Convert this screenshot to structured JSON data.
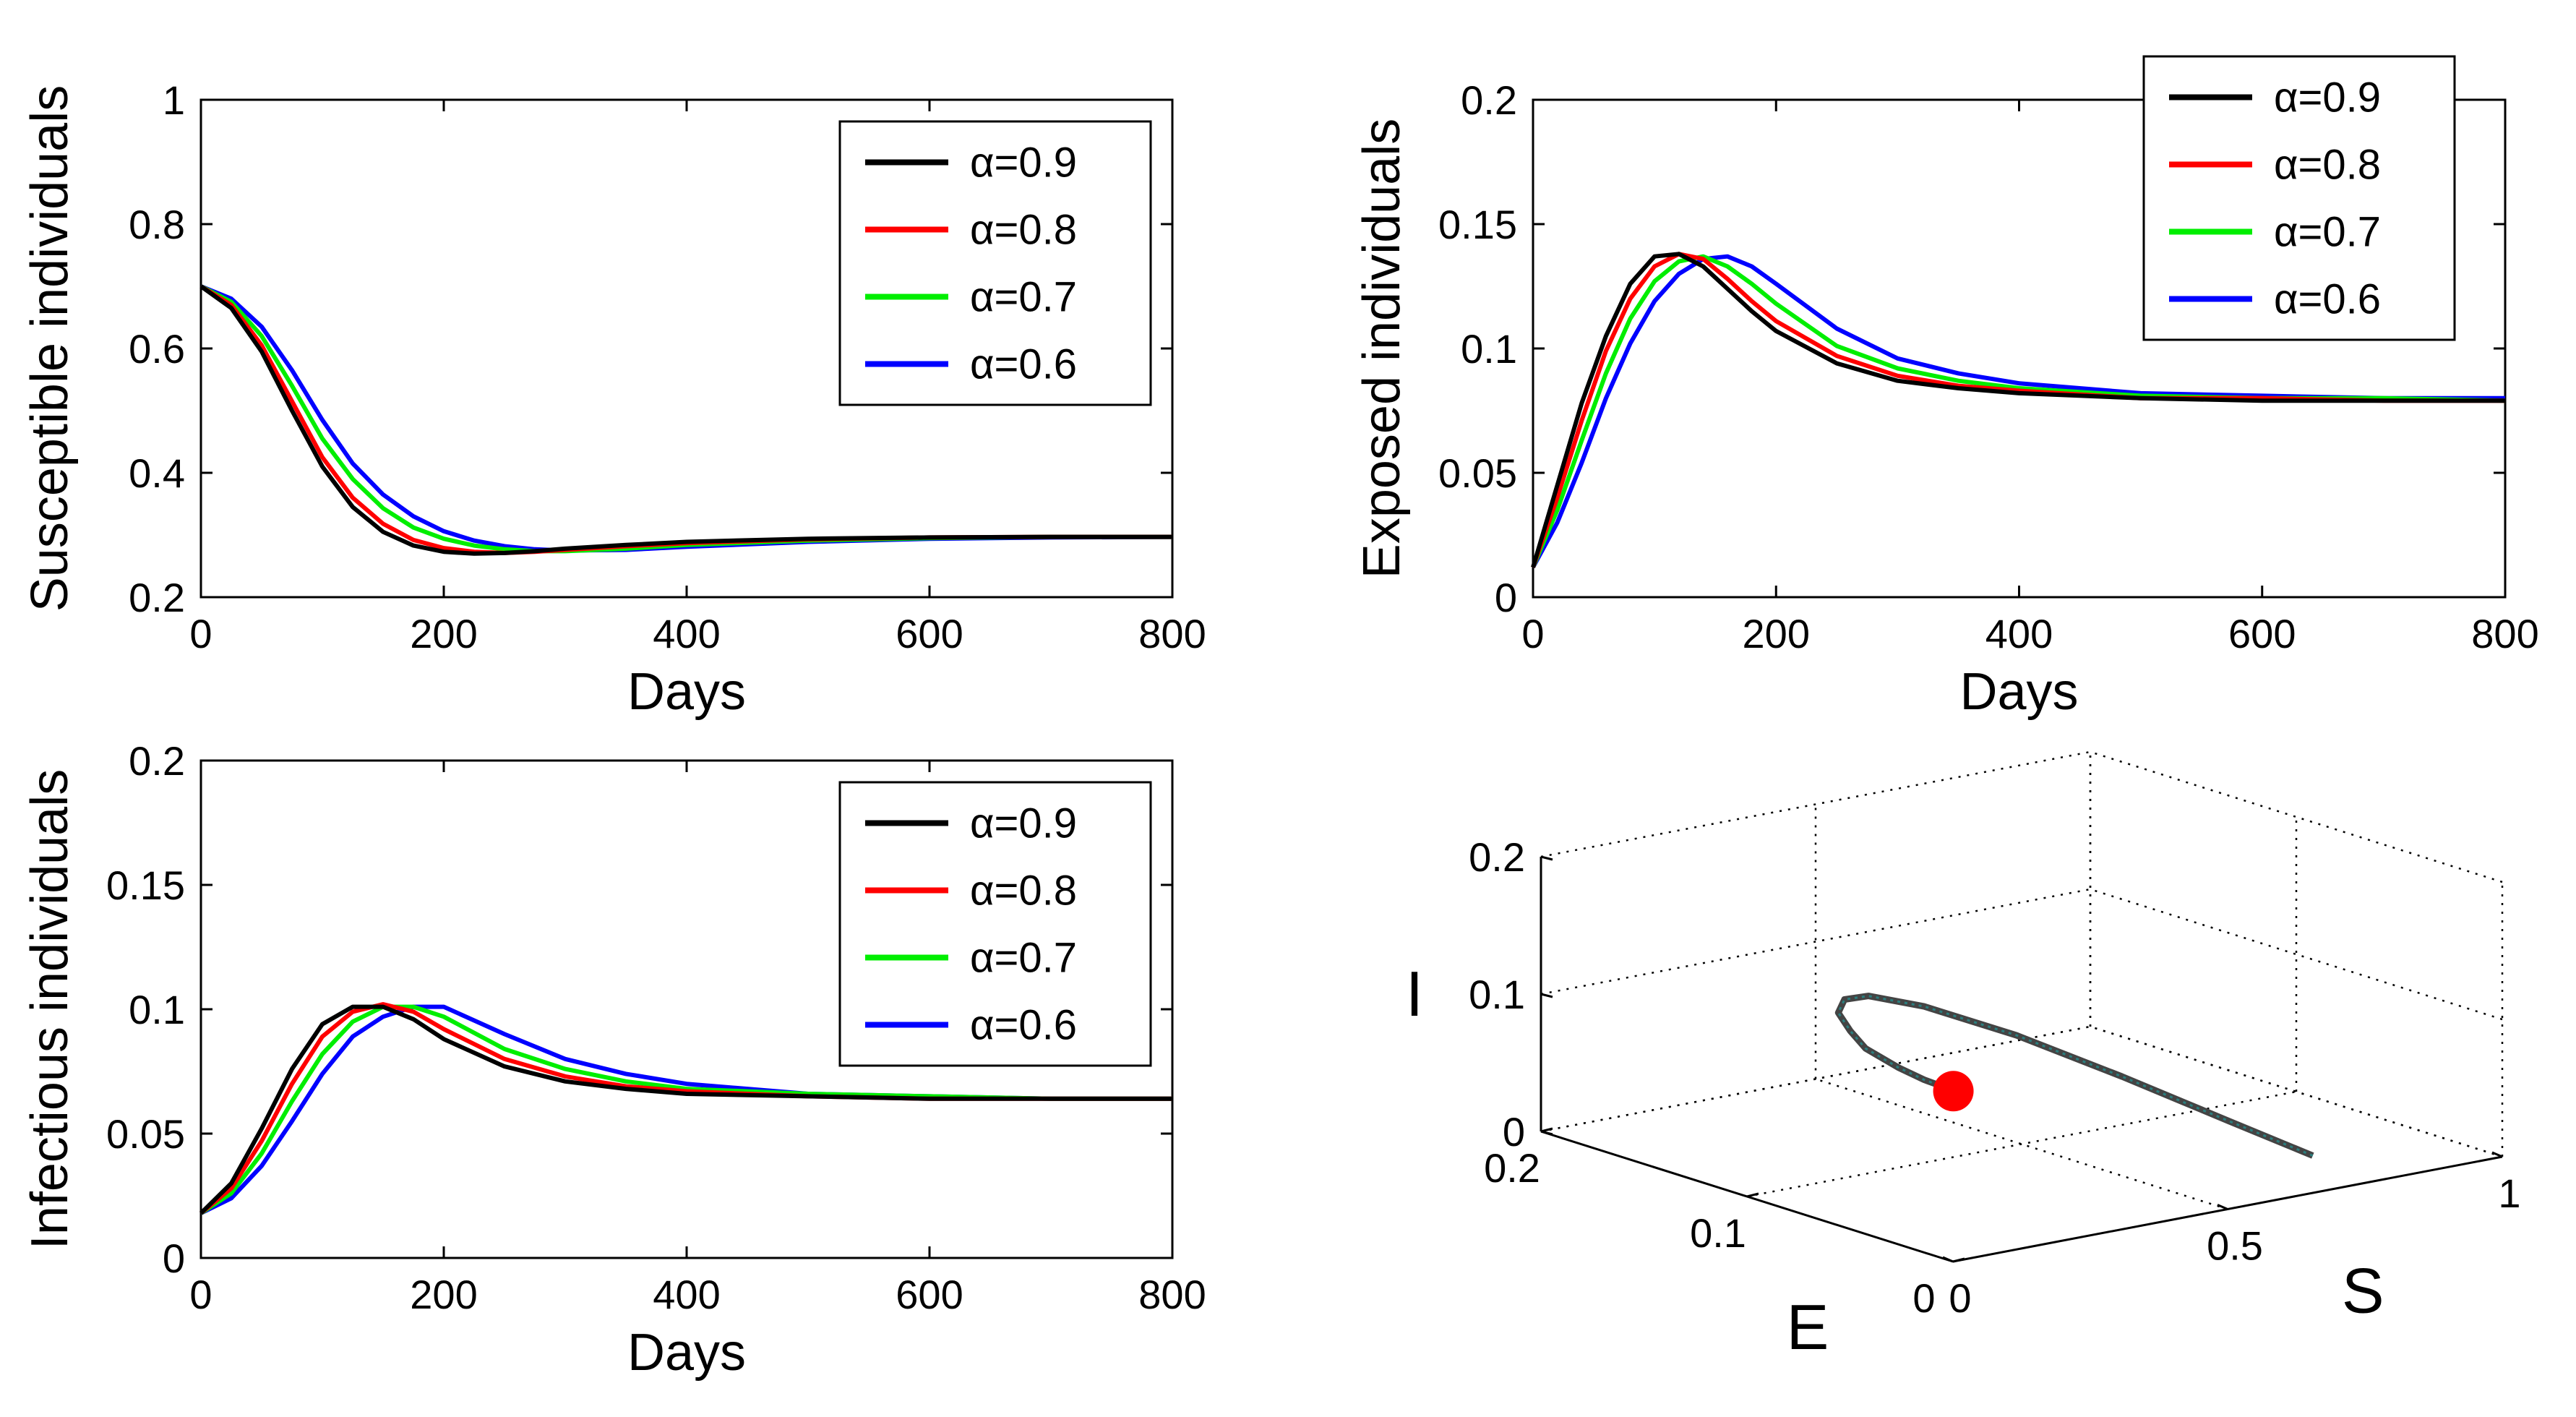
{
  "chart_data": [
    {
      "id": "susceptible",
      "type": "line",
      "xlabel": "Days",
      "ylabel": "Susceptible individuals",
      "xlim": [
        0,
        800
      ],
      "ylim": [
        0.2,
        1
      ],
      "xticks": [
        "0",
        "200",
        "400",
        "600",
        "800"
      ],
      "yticks": [
        "0.2",
        "0.4",
        "0.6",
        "0.8",
        "1"
      ],
      "legend_position": "top-right",
      "x": [
        0,
        25,
        50,
        75,
        100,
        125,
        150,
        175,
        200,
        225,
        250,
        275,
        300,
        350,
        400,
        500,
        600,
        700,
        800
      ],
      "series": [
        {
          "name": "α=0.9",
          "color": "#000000",
          "values": [
            0.7,
            0.665,
            0.595,
            0.5,
            0.41,
            0.345,
            0.305,
            0.283,
            0.273,
            0.27,
            0.271,
            0.274,
            0.278,
            0.284,
            0.289,
            0.294,
            0.296,
            0.297,
            0.297
          ]
        },
        {
          "name": "α=0.8",
          "color": "#ff0000",
          "values": [
            0.7,
            0.67,
            0.605,
            0.515,
            0.425,
            0.36,
            0.318,
            0.292,
            0.279,
            0.273,
            0.271,
            0.273,
            0.276,
            0.282,
            0.287,
            0.293,
            0.296,
            0.297,
            0.297
          ]
        },
        {
          "name": "α=0.7",
          "color": "#00ee00",
          "values": [
            0.7,
            0.675,
            0.62,
            0.54,
            0.455,
            0.39,
            0.343,
            0.312,
            0.294,
            0.283,
            0.277,
            0.274,
            0.274,
            0.278,
            0.284,
            0.291,
            0.295,
            0.297,
            0.297
          ]
        },
        {
          "name": "α=0.6",
          "color": "#0000ff",
          "values": [
            0.7,
            0.68,
            0.635,
            0.565,
            0.485,
            0.415,
            0.365,
            0.33,
            0.306,
            0.291,
            0.282,
            0.277,
            0.275,
            0.276,
            0.281,
            0.289,
            0.294,
            0.296,
            0.297
          ]
        }
      ]
    },
    {
      "id": "exposed",
      "type": "line",
      "xlabel": "Days",
      "ylabel": "Exposed individuals",
      "xlim": [
        0,
        800
      ],
      "ylim": [
        0,
        0.2
      ],
      "xticks": [
        "0",
        "200",
        "400",
        "600",
        "800"
      ],
      "yticks": [
        "0",
        "0.05",
        "0.1",
        "0.15",
        "0.2"
      ],
      "legend_position": "top-right",
      "x": [
        0,
        20,
        40,
        60,
        80,
        100,
        120,
        140,
        160,
        180,
        200,
        250,
        300,
        350,
        400,
        500,
        600,
        700,
        800
      ],
      "series": [
        {
          "name": "α=0.9",
          "color": "#000000",
          "values": [
            0.012,
            0.045,
            0.078,
            0.105,
            0.126,
            0.137,
            0.138,
            0.133,
            0.124,
            0.115,
            0.107,
            0.094,
            0.087,
            0.084,
            0.082,
            0.08,
            0.079,
            0.079,
            0.079
          ]
        },
        {
          "name": "α=0.8",
          "color": "#ff0000",
          "values": [
            0.012,
            0.04,
            0.071,
            0.099,
            0.12,
            0.133,
            0.138,
            0.136,
            0.128,
            0.119,
            0.111,
            0.097,
            0.089,
            0.085,
            0.083,
            0.08,
            0.08,
            0.079,
            0.079
          ]
        },
        {
          "name": "α=0.7",
          "color": "#00ee00",
          "values": [
            0.012,
            0.035,
            0.063,
            0.09,
            0.112,
            0.127,
            0.135,
            0.137,
            0.133,
            0.126,
            0.118,
            0.101,
            0.092,
            0.087,
            0.084,
            0.081,
            0.08,
            0.08,
            0.079
          ]
        },
        {
          "name": "α=0.6",
          "color": "#0000ff",
          "values": [
            0.012,
            0.03,
            0.054,
            0.08,
            0.102,
            0.119,
            0.13,
            0.136,
            0.137,
            0.133,
            0.126,
            0.108,
            0.096,
            0.09,
            0.086,
            0.082,
            0.081,
            0.08,
            0.08
          ]
        }
      ]
    },
    {
      "id": "infectious",
      "type": "line",
      "xlabel": "Days",
      "ylabel": "Infectious individuals",
      "xlim": [
        0,
        800
      ],
      "ylim": [
        0,
        0.2
      ],
      "xticks": [
        "0",
        "200",
        "400",
        "600",
        "800"
      ],
      "yticks": [
        "0",
        "0.05",
        "0.1",
        "0.15",
        "0.2"
      ],
      "legend_position": "top-right",
      "x": [
        0,
        25,
        50,
        75,
        100,
        125,
        150,
        175,
        200,
        250,
        300,
        350,
        400,
        500,
        600,
        700,
        800
      ],
      "series": [
        {
          "name": "α=0.9",
          "color": "#000000",
          "values": [
            0.018,
            0.03,
            0.052,
            0.076,
            0.094,
            0.101,
            0.101,
            0.096,
            0.088,
            0.077,
            0.071,
            0.068,
            0.066,
            0.065,
            0.064,
            0.064,
            0.064
          ]
        },
        {
          "name": "α=0.8",
          "color": "#ff0000",
          "values": [
            0.018,
            0.028,
            0.047,
            0.07,
            0.089,
            0.099,
            0.102,
            0.099,
            0.092,
            0.08,
            0.073,
            0.069,
            0.067,
            0.065,
            0.064,
            0.064,
            0.064
          ]
        },
        {
          "name": "α=0.7",
          "color": "#00ee00",
          "values": [
            0.018,
            0.026,
            0.042,
            0.063,
            0.082,
            0.095,
            0.101,
            0.101,
            0.097,
            0.084,
            0.076,
            0.071,
            0.068,
            0.066,
            0.065,
            0.064,
            0.064
          ]
        },
        {
          "name": "α=0.6",
          "color": "#0000ff",
          "values": [
            0.018,
            0.024,
            0.037,
            0.055,
            0.074,
            0.089,
            0.097,
            0.101,
            0.101,
            0.09,
            0.08,
            0.074,
            0.07,
            0.066,
            0.065,
            0.064,
            0.064
          ]
        }
      ]
    },
    {
      "id": "phase-3d",
      "type": "scatter",
      "xlabel": "S",
      "ylabel": "E",
      "zlabel": "I",
      "xlim": [
        0,
        1
      ],
      "ylim": [
        0,
        0.2
      ],
      "zlim": [
        0,
        0.2
      ],
      "xticks": [
        "0",
        "0.5",
        "1"
      ],
      "yticks": [
        "0",
        "0.1",
        "0.2"
      ],
      "zticks": [
        "0",
        "0.1",
        "0.2"
      ],
      "grid": true,
      "trajectory": {
        "S": [
          0.7,
          0.67,
          0.6,
          0.51,
          0.42,
          0.36,
          0.32,
          0.29,
          0.278,
          0.272,
          0.275,
          0.285,
          0.292,
          0.297
        ],
        "E": [
          0.012,
          0.045,
          0.078,
          0.105,
          0.126,
          0.137,
          0.138,
          0.133,
          0.124,
          0.115,
          0.1,
          0.09,
          0.084,
          0.079
        ],
        "I": [
          0.018,
          0.03,
          0.052,
          0.076,
          0.094,
          0.101,
          0.101,
          0.096,
          0.088,
          0.08,
          0.073,
          0.068,
          0.066,
          0.064
        ]
      },
      "equilibrium": {
        "S": 0.297,
        "E": 0.079,
        "I": 0.064,
        "color": "#ff0000"
      }
    }
  ]
}
